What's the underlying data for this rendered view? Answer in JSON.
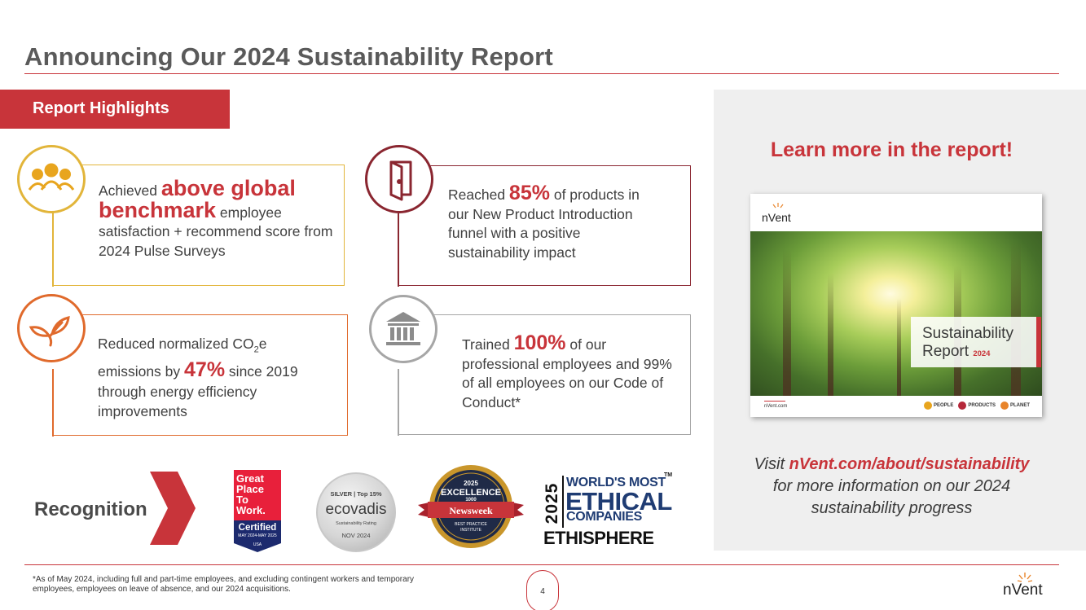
{
  "title": "Announcing Our 2024 Sustainability Report",
  "highlights_label": "Report Highlights",
  "cards": {
    "employee": {
      "pre": "Achieved ",
      "emph": "above global benchmark",
      "post": " employee satisfaction + recommend score from 2024 Pulse Surveys",
      "icon": "people-group-icon",
      "color": "#e2b53a"
    },
    "products": {
      "pre": "Reached ",
      "emph": "85%",
      "post": " of products in our New Product Introduction funnel with a positive sustainability impact",
      "icon": "open-door-icon",
      "color": "#8a2630"
    },
    "emissions": {
      "pre": "Reduced normalized CO",
      "sub": "2",
      "mid": "e emissions by ",
      "emph": "47%",
      "post": " since 2019 through energy efficiency improvements",
      "icon": "leaf-sprout-icon",
      "color": "#e06a2c"
    },
    "conduct": {
      "pre": "Trained ",
      "emph": "100%",
      "post": " of our professional employees and 99% of all employees on our Code of Conduct*",
      "icon": "institution-building-icon",
      "color": "#a6a6a6"
    }
  },
  "recognition": {
    "label": "Recognition",
    "gptw": {
      "l1": "Great",
      "l2": "Place",
      "l3": "To",
      "l4": "Work.",
      "certified": "Certified",
      "dates": "MAY 2024-MAY 2025",
      "country": "USA"
    },
    "ecovadis": {
      "top": "SILVER | Top 15%",
      "brand": "ecovadis",
      "rating": "Sustainability Rating",
      "date": "NOV 2024"
    },
    "newsweek": {
      "year": "2025",
      "excellence": "EXCELLENCE",
      "number": "1000",
      "brand": "Newsweek",
      "sub1": "BEST PRACTICE",
      "sub2": "INSTITUTE"
    },
    "ethisphere": {
      "year": "2025",
      "l1": "WORLD'S MOST",
      "l2": "ETHICAL",
      "l3": "COMPANIES",
      "brand": "ETHISPHERE",
      "tm": "TM"
    }
  },
  "panel": {
    "heading": "Learn more in the report!",
    "cover": {
      "brand": "nVent",
      "title1": "Sustainability",
      "title2": "Report",
      "year": "2024",
      "url": "nVent.com",
      "tags": [
        "PEOPLE",
        "PRODUCTS",
        "PLANET"
      ],
      "tag_colors": [
        "#e8a51e",
        "#b5283a",
        "#e8842a"
      ]
    },
    "visit_pre": "Visit ",
    "visit_link": "nVent.com/about/sustainability",
    "visit_post": "for more information on our 2024 sustainability progress"
  },
  "footnote": "*As of May 2024, including full and part-time employees, and excluding contingent workers and temporary employees, employees on leave of absence, and our 2024 acquisitions.",
  "page_number": "4",
  "logo": "nVent",
  "colors": {
    "accent": "#c8343a",
    "title_gray": "#5a5a5a"
  }
}
